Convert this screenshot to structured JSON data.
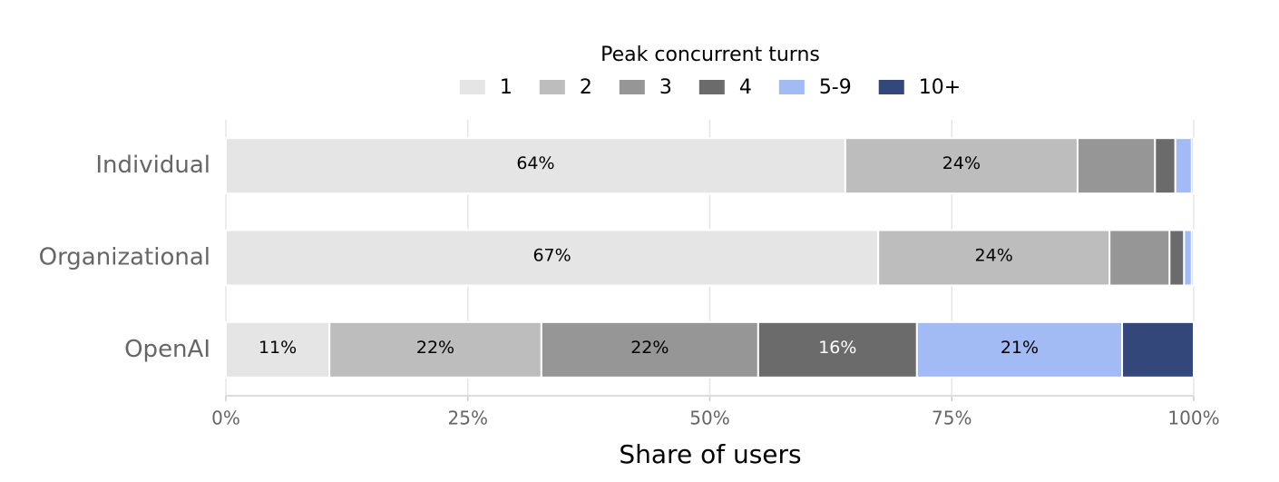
{
  "chart_data": {
    "type": "stacked-barh",
    "legend_title": "Peak concurrent turns",
    "xlabel": "Share of users",
    "categories": [
      "Individual",
      "Organizational",
      "OpenAI"
    ],
    "series": [
      {
        "name": "1",
        "color": "#e5e5e5",
        "values": [
          64.0,
          67.4,
          10.7
        ],
        "value_labels": [
          "64%",
          "67%",
          "11%"
        ]
      },
      {
        "name": "2",
        "color": "#bdbdbd",
        "values": [
          24.0,
          23.9,
          21.9
        ],
        "value_labels": [
          "24%",
          "24%",
          "22%"
        ]
      },
      {
        "name": "3",
        "color": "#969696",
        "values": [
          8.0,
          6.2,
          22.4
        ],
        "value_labels": [
          null,
          null,
          "22%"
        ]
      },
      {
        "name": "4",
        "color": "#6b6b6b",
        "values": [
          2.1,
          1.5,
          16.4
        ],
        "value_labels": [
          null,
          null,
          "16%"
        ]
      },
      {
        "name": "5-9",
        "color": "#a2bbf5",
        "values": [
          1.7,
          0.8,
          21.2
        ],
        "value_labels": [
          null,
          null,
          "21%"
        ]
      },
      {
        "name": "10+",
        "color": "#34477a",
        "values": [
          0.2,
          0.2,
          7.4
        ]
      }
    ],
    "xlim": [
      0,
      100
    ],
    "xticks": [
      {
        "value": 0,
        "label": "0%"
      },
      {
        "value": 25,
        "label": "25%"
      },
      {
        "value": 50,
        "label": "50%"
      },
      {
        "value": 75,
        "label": "75%"
      },
      {
        "value": 100,
        "label": "100%"
      }
    ],
    "grid": true,
    "legend_position": "top"
  }
}
